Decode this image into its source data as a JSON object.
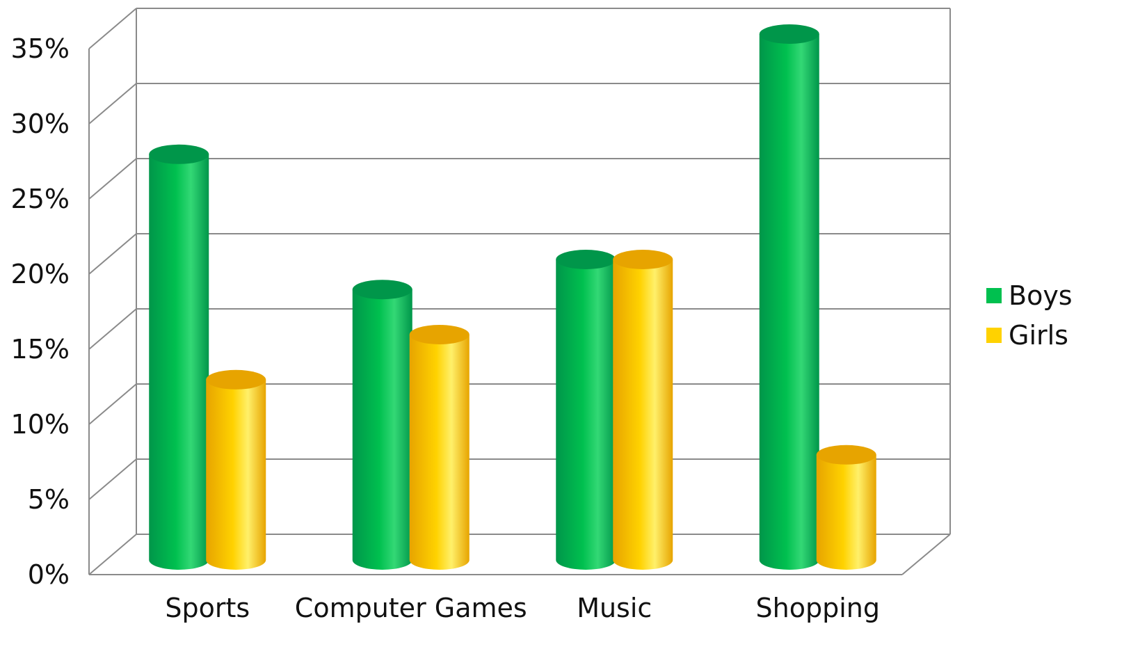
{
  "chart_data": {
    "type": "bar",
    "style": "3d-cylinder",
    "categories": [
      "Sports",
      "Computer Games",
      "Music",
      "Shopping"
    ],
    "series": [
      {
        "name": "Boys",
        "values": [
          27,
          18,
          20,
          35
        ],
        "color": "#00c04f",
        "dark": "#00964a",
        "light": "#33d875"
      },
      {
        "name": "Girls",
        "values": [
          12,
          15,
          20,
          7
        ],
        "color": "#ffd200",
        "dark": "#e7a400",
        "light": "#fff06a"
      }
    ],
    "yticks": [
      "0%",
      "5%",
      "10%",
      "15%",
      "20%",
      "25%",
      "30%",
      "35%"
    ],
    "ylim": [
      0,
      35
    ],
    "grid": true,
    "legend": "right"
  }
}
